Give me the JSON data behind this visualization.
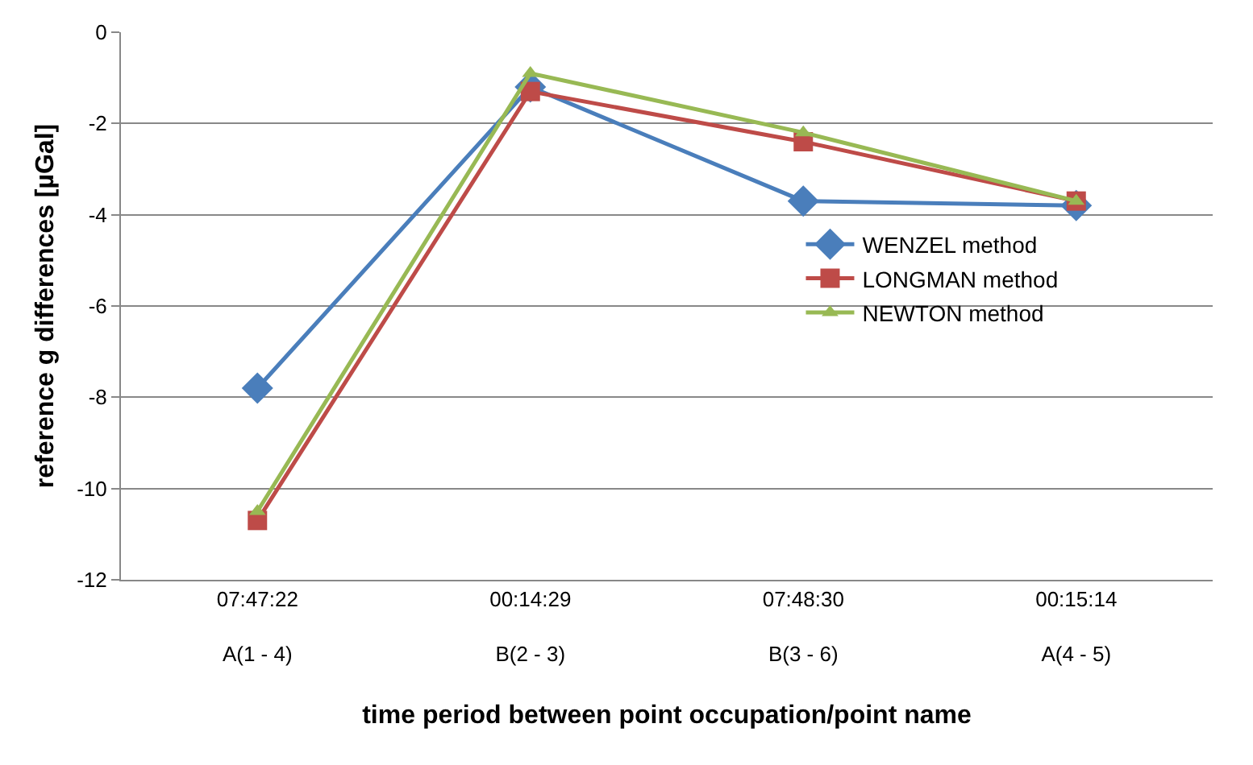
{
  "chart_data": {
    "type": "line",
    "xlabel": "time period between point occupation/point name",
    "ylabel": "reference g differences [µGal]",
    "categories": [
      "07:47:22\nA(1 - 4)",
      "00:14:29\nB(2 - 3)",
      "07:48:30\nB(3 - 6)",
      "00:15:14\nA(4 - 5)"
    ],
    "series": [
      {
        "name": "WENZEL method",
        "color": "#4a7ebb",
        "marker": "diamond",
        "values": [
          -7.8,
          -1.2,
          -3.7,
          -3.8
        ]
      },
      {
        "name": "LONGMAN method",
        "color": "#be4b48",
        "marker": "square",
        "values": [
          -10.7,
          -1.3,
          -2.4,
          -3.7
        ]
      },
      {
        "name": "NEWTON method",
        "color": "#98b954",
        "marker": "triangle",
        "values": [
          -10.5,
          -0.9,
          -2.2,
          -3.7
        ]
      }
    ],
    "ylim": [
      -12,
      0
    ],
    "yticks": [
      -12,
      -10,
      -8,
      -6,
      -4,
      -2,
      0
    ],
    "grid": "y",
    "legend": "right"
  }
}
